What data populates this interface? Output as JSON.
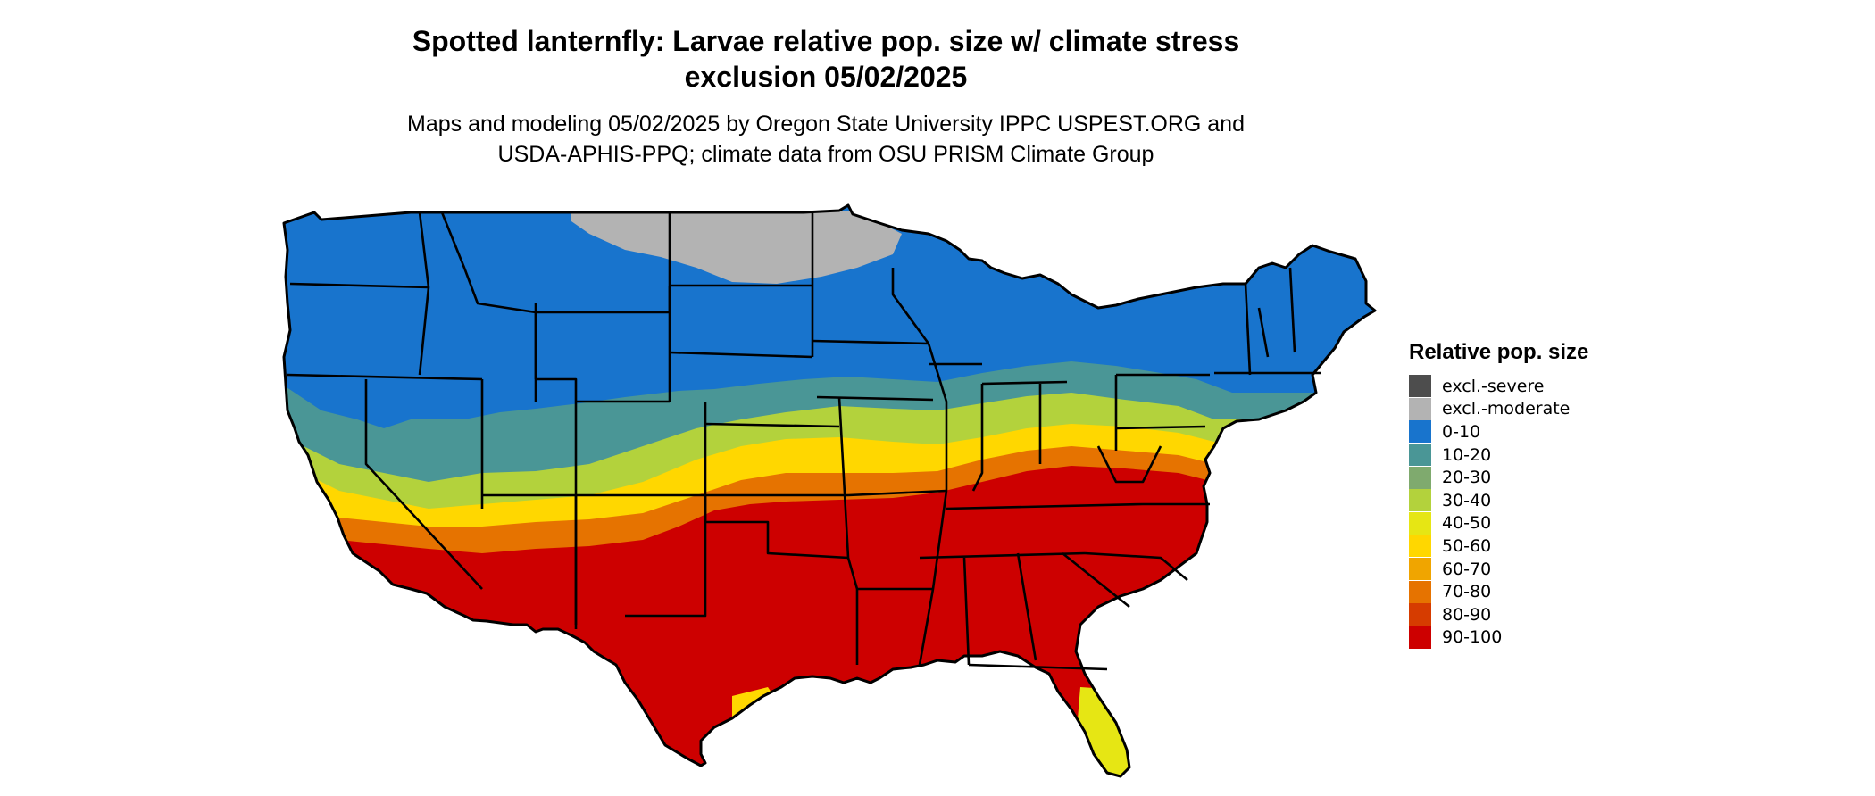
{
  "title": {
    "line1": "Spotted lanternfly: Larvae relative pop. size w/ climate stress",
    "line2": "exclusion 05/02/2025"
  },
  "subtitle": {
    "line1": "Maps and modeling 05/02/2025 by Oregon State University IPPC USPEST.ORG and",
    "line2": "USDA-APHIS-PPQ; climate data from OSU PRISM Climate Group"
  },
  "legend": {
    "title": "Relative pop. size",
    "items": [
      {
        "label": "excl.-severe",
        "color": "#4d4d4d"
      },
      {
        "label": "excl.-moderate",
        "color": "#b3b3b3"
      },
      {
        "label": "0-10",
        "color": "#1874cd"
      },
      {
        "label": "10-20",
        "color": "#4a9696"
      },
      {
        "label": "20-30",
        "color": "#7faa6e"
      },
      {
        "label": "30-40",
        "color": "#b3d23c"
      },
      {
        "label": "40-50",
        "color": "#e6e614"
      },
      {
        "label": "50-60",
        "color": "#ffd700"
      },
      {
        "label": "60-70",
        "color": "#f0a500"
      },
      {
        "label": "70-80",
        "color": "#e67300"
      },
      {
        "label": "80-90",
        "color": "#d63c00"
      },
      {
        "label": "90-100",
        "color": "#cd0000"
      }
    ]
  },
  "map": {
    "region": "conterminous-united-states",
    "boundary_color": "#000000",
    "colors": {
      "excl_moderate": "#b3b3b3",
      "c0_10": "#1874cd",
      "c10_20": "#4a9696",
      "c20_30": "#7faa6e",
      "c30_40": "#b3d23c",
      "c40_50": "#e6e614",
      "c50_60": "#ffd700",
      "c60_70": "#f0a500",
      "c70_80": "#e67300",
      "c80_90": "#d63c00",
      "c90_100": "#cd0000"
    }
  }
}
